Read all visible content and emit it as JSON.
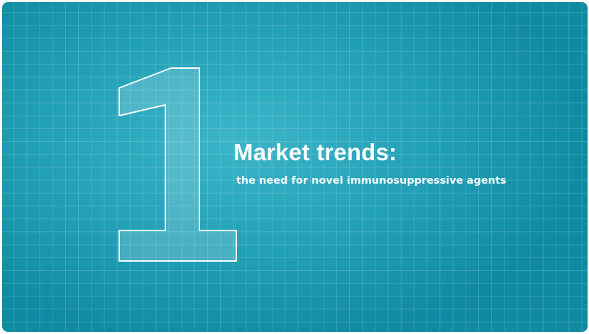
{
  "slide": {
    "numeral": "1",
    "title": "Market trends:",
    "subtitle": "the need for novel immunosuppressive agents"
  },
  "colors": {
    "background": "#22a0b6",
    "background_edge": "#0f8aa2",
    "grid_lines": "#ffffff",
    "text": "#ffffff"
  }
}
